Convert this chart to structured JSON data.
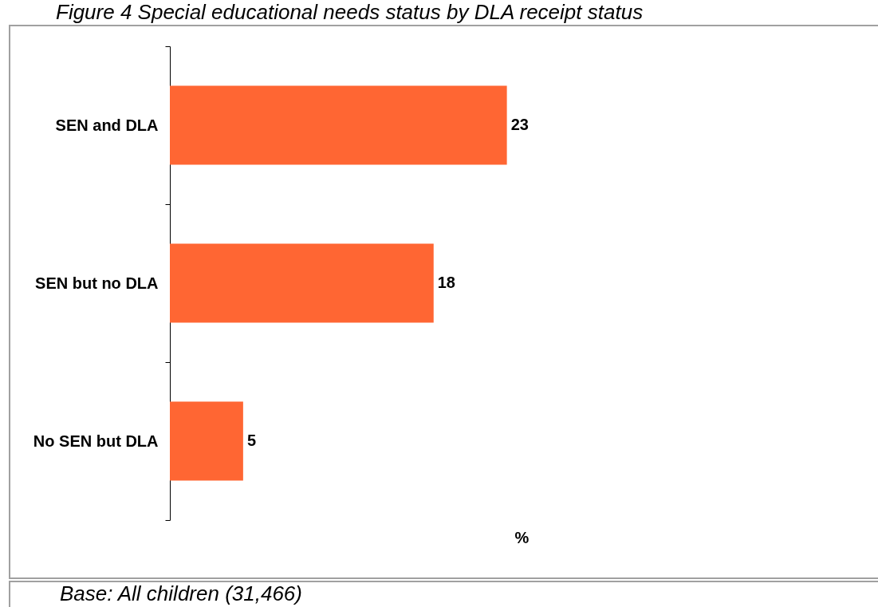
{
  "chart_data": {
    "type": "bar",
    "orientation": "horizontal",
    "title": "Figure 4 Special educational needs status by DLA receipt status",
    "xlabel": "%",
    "categories": [
      "SEN and DLA",
      "SEN but no DLA",
      "No SEN but DLA"
    ],
    "values": [
      23,
      18,
      5
    ],
    "color": "#ff6633",
    "data_labels": true,
    "tick_labels": "y",
    "annotations": [
      "Base: All children (31,466)"
    ]
  }
}
